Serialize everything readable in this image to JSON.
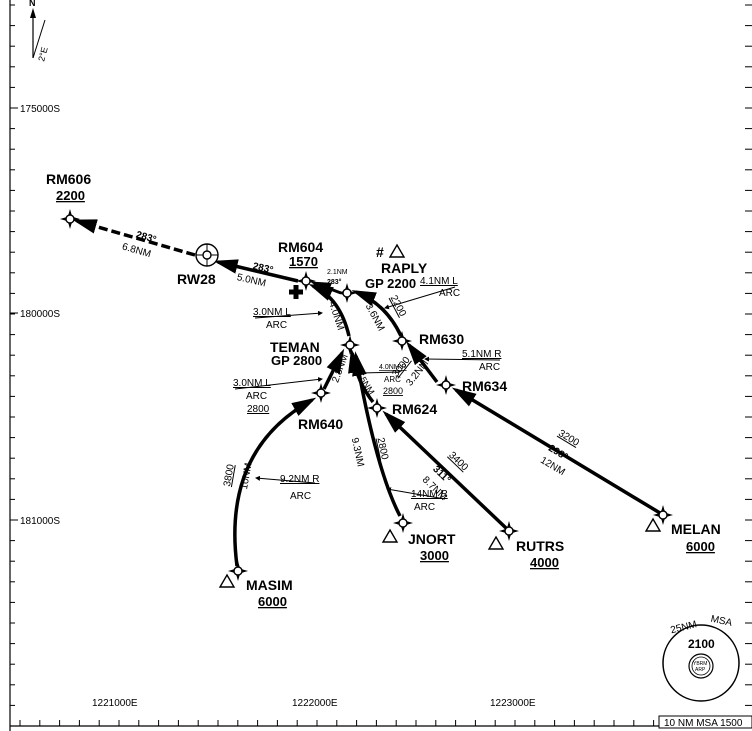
{
  "north": {
    "label": "N",
    "variation": "2°E"
  },
  "grid_labels": {
    "lat": [
      "175000S",
      "180000S",
      "181000S"
    ],
    "lon": [
      "1221000E",
      "1222000E",
      "1223000E"
    ]
  },
  "waypoints": {
    "rm606": {
      "name": "RM606",
      "alt": "2200"
    },
    "rw28": {
      "name": "RW28"
    },
    "rm604": {
      "name": "RM604",
      "alt": "1570"
    },
    "raply": {
      "name": "RAPLY",
      "gp": "GP 2200",
      "mark": "#"
    },
    "rm630": {
      "name": "RM630"
    },
    "teman": {
      "name": "TEMAN",
      "gp": "GP 2800"
    },
    "rm634": {
      "name": "RM634"
    },
    "rm624": {
      "name": "RM624"
    },
    "rm640": {
      "name": "RM640"
    },
    "jnort": {
      "name": "JNORT",
      "alt": "3000"
    },
    "rutrs": {
      "name": "RUTRS",
      "alt": "4000"
    },
    "melan": {
      "name": "MELAN",
      "alt": "6000"
    },
    "masim": {
      "name": "MASIM",
      "alt": "6000"
    }
  },
  "legs": {
    "rw28_rm606": {
      "course": "283°",
      "dist": "6.8NM"
    },
    "rm604_rw28": {
      "course": "283°",
      "dist": "5.0NM"
    },
    "raply_rm604": {
      "dist": "2.1NM",
      "course": "283°"
    },
    "rm630_raply": {
      "dist": "3.6NM",
      "alt": "2200"
    },
    "raply_arc": {
      "arc": "4.1NM L",
      "arc_word": "ARC"
    },
    "teman_rm604": {
      "dist": "4.0NM"
    },
    "teman_arc": {
      "arc": "3.0NM L",
      "arc_word": "ARC"
    },
    "rm634_rm630": {
      "dist": "3.2NM",
      "alt": "3000"
    },
    "rm630_arc": {
      "arc": "5.1NM R",
      "arc_word": "ARC"
    },
    "rm640_teman": {
      "dist": "2.8NM"
    },
    "rm640_arc": {
      "arc": "3.0NM L",
      "arc_word": "ARC",
      "alt": "2800"
    },
    "rm624_teman": {
      "dist": "3.5NM"
    },
    "rm624_arc": {
      "arc": "4.0NM R",
      "arc_word": "ARC",
      "alt": "2800"
    },
    "melan_rm634": {
      "alt": "3200",
      "course": "298°",
      "dist": "12NM"
    },
    "rutrs_rm624": {
      "alt": "3400",
      "course": "311°",
      "dist": "8.7NM"
    },
    "jnort_teman": {
      "dist": "9.3NM",
      "alt": "2800"
    },
    "jnort_arc": {
      "arc": "14NM R",
      "arc_word": "ARC"
    },
    "masim_rm640": {
      "alt": "3800",
      "dist": "10NM"
    },
    "masim_arc": {
      "arc": "9.2NM R",
      "arc_word": "ARC"
    }
  },
  "msa": {
    "radius": "25NM",
    "label": "MSA",
    "alt": "2100",
    "ref1": "YBRM",
    "ref2": "ARP"
  },
  "footer": {
    "msa_note": "10 NM MSA 1500"
  }
}
